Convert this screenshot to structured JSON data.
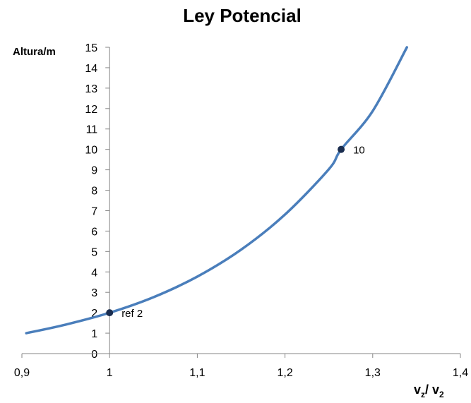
{
  "chart_data": {
    "type": "line",
    "title": "Ley Potencial",
    "ylabel": "Altura/m",
    "xlabel": {
      "main": "v",
      "sub1": "z",
      "sep": "/ v",
      "sub2": "2"
    },
    "xlim": [
      0.9,
      1.4
    ],
    "ylim": [
      0,
      15
    ],
    "x_ticks": [
      {
        "value": 0.9,
        "label": "0,9"
      },
      {
        "value": 1.0,
        "label": "1"
      },
      {
        "value": 1.1,
        "label": "1,1"
      },
      {
        "value": 1.2,
        "label": "1,2"
      },
      {
        "value": 1.3,
        "label": "1,3"
      },
      {
        "value": 1.4,
        "label": "1,4"
      }
    ],
    "y_ticks": [
      0,
      1,
      2,
      3,
      4,
      5,
      6,
      7,
      8,
      9,
      10,
      11,
      12,
      13,
      14,
      15
    ],
    "grid": false,
    "line_color": "#4a7ebb",
    "marker_color": "#1a2d4f",
    "series": [
      {
        "x": [
          0.905,
          0.95,
          1.0,
          1.05,
          1.1,
          1.15,
          1.2,
          1.25,
          1.264,
          1.3,
          1.339
        ],
        "y": [
          1.0,
          1.42,
          2.0,
          2.76,
          3.77,
          5.09,
          6.81,
          9.03,
          10.0,
          11.88,
          15.0
        ]
      }
    ],
    "points": [
      {
        "x": 1.0,
        "y": 2,
        "label": "ref 2"
      },
      {
        "x": 1.264,
        "y": 10,
        "label": "10"
      }
    ]
  }
}
